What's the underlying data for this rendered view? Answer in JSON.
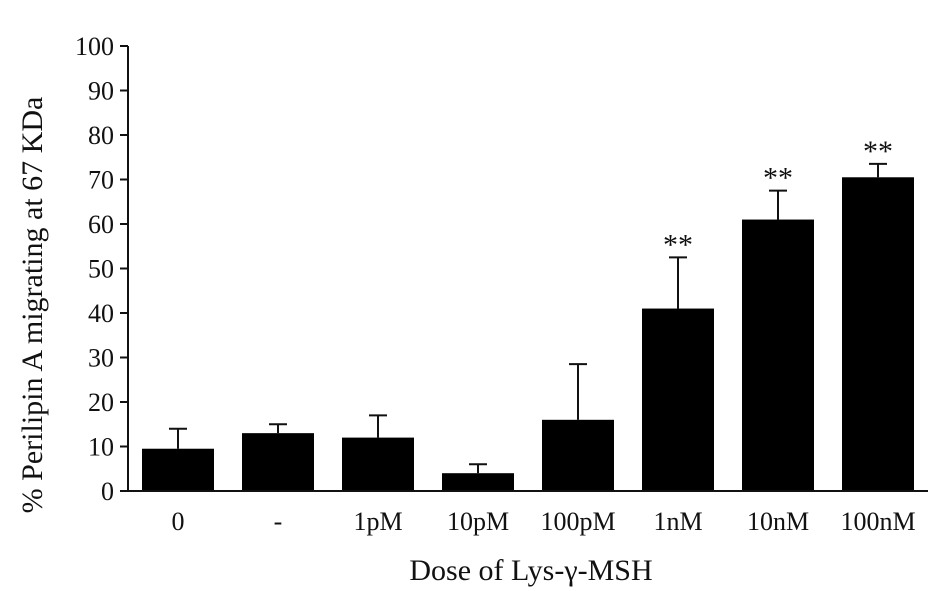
{
  "chart_data": {
    "type": "bar",
    "categories": [
      "0",
      "-",
      "1pM",
      "10pM",
      "100pM",
      "1nM",
      "10nM",
      "100nM"
    ],
    "values": [
      9.5,
      13,
      12,
      4,
      16,
      41,
      61,
      70.5
    ],
    "errors": [
      4.5,
      2,
      5,
      2,
      12.5,
      11.5,
      6.5,
      3
    ],
    "annotations": [
      "",
      "",
      "",
      "",
      "",
      "**",
      "**",
      "**"
    ],
    "xlabel": "Dose of Lys-γ-MSH",
    "ylabel": "% Perilipin A migrating at 67 KDa",
    "ylim": [
      0,
      100
    ],
    "yticks": [
      0,
      10,
      20,
      30,
      40,
      50,
      60,
      70,
      80,
      90,
      100
    ],
    "grid": false,
    "bar_color": "#000000"
  }
}
